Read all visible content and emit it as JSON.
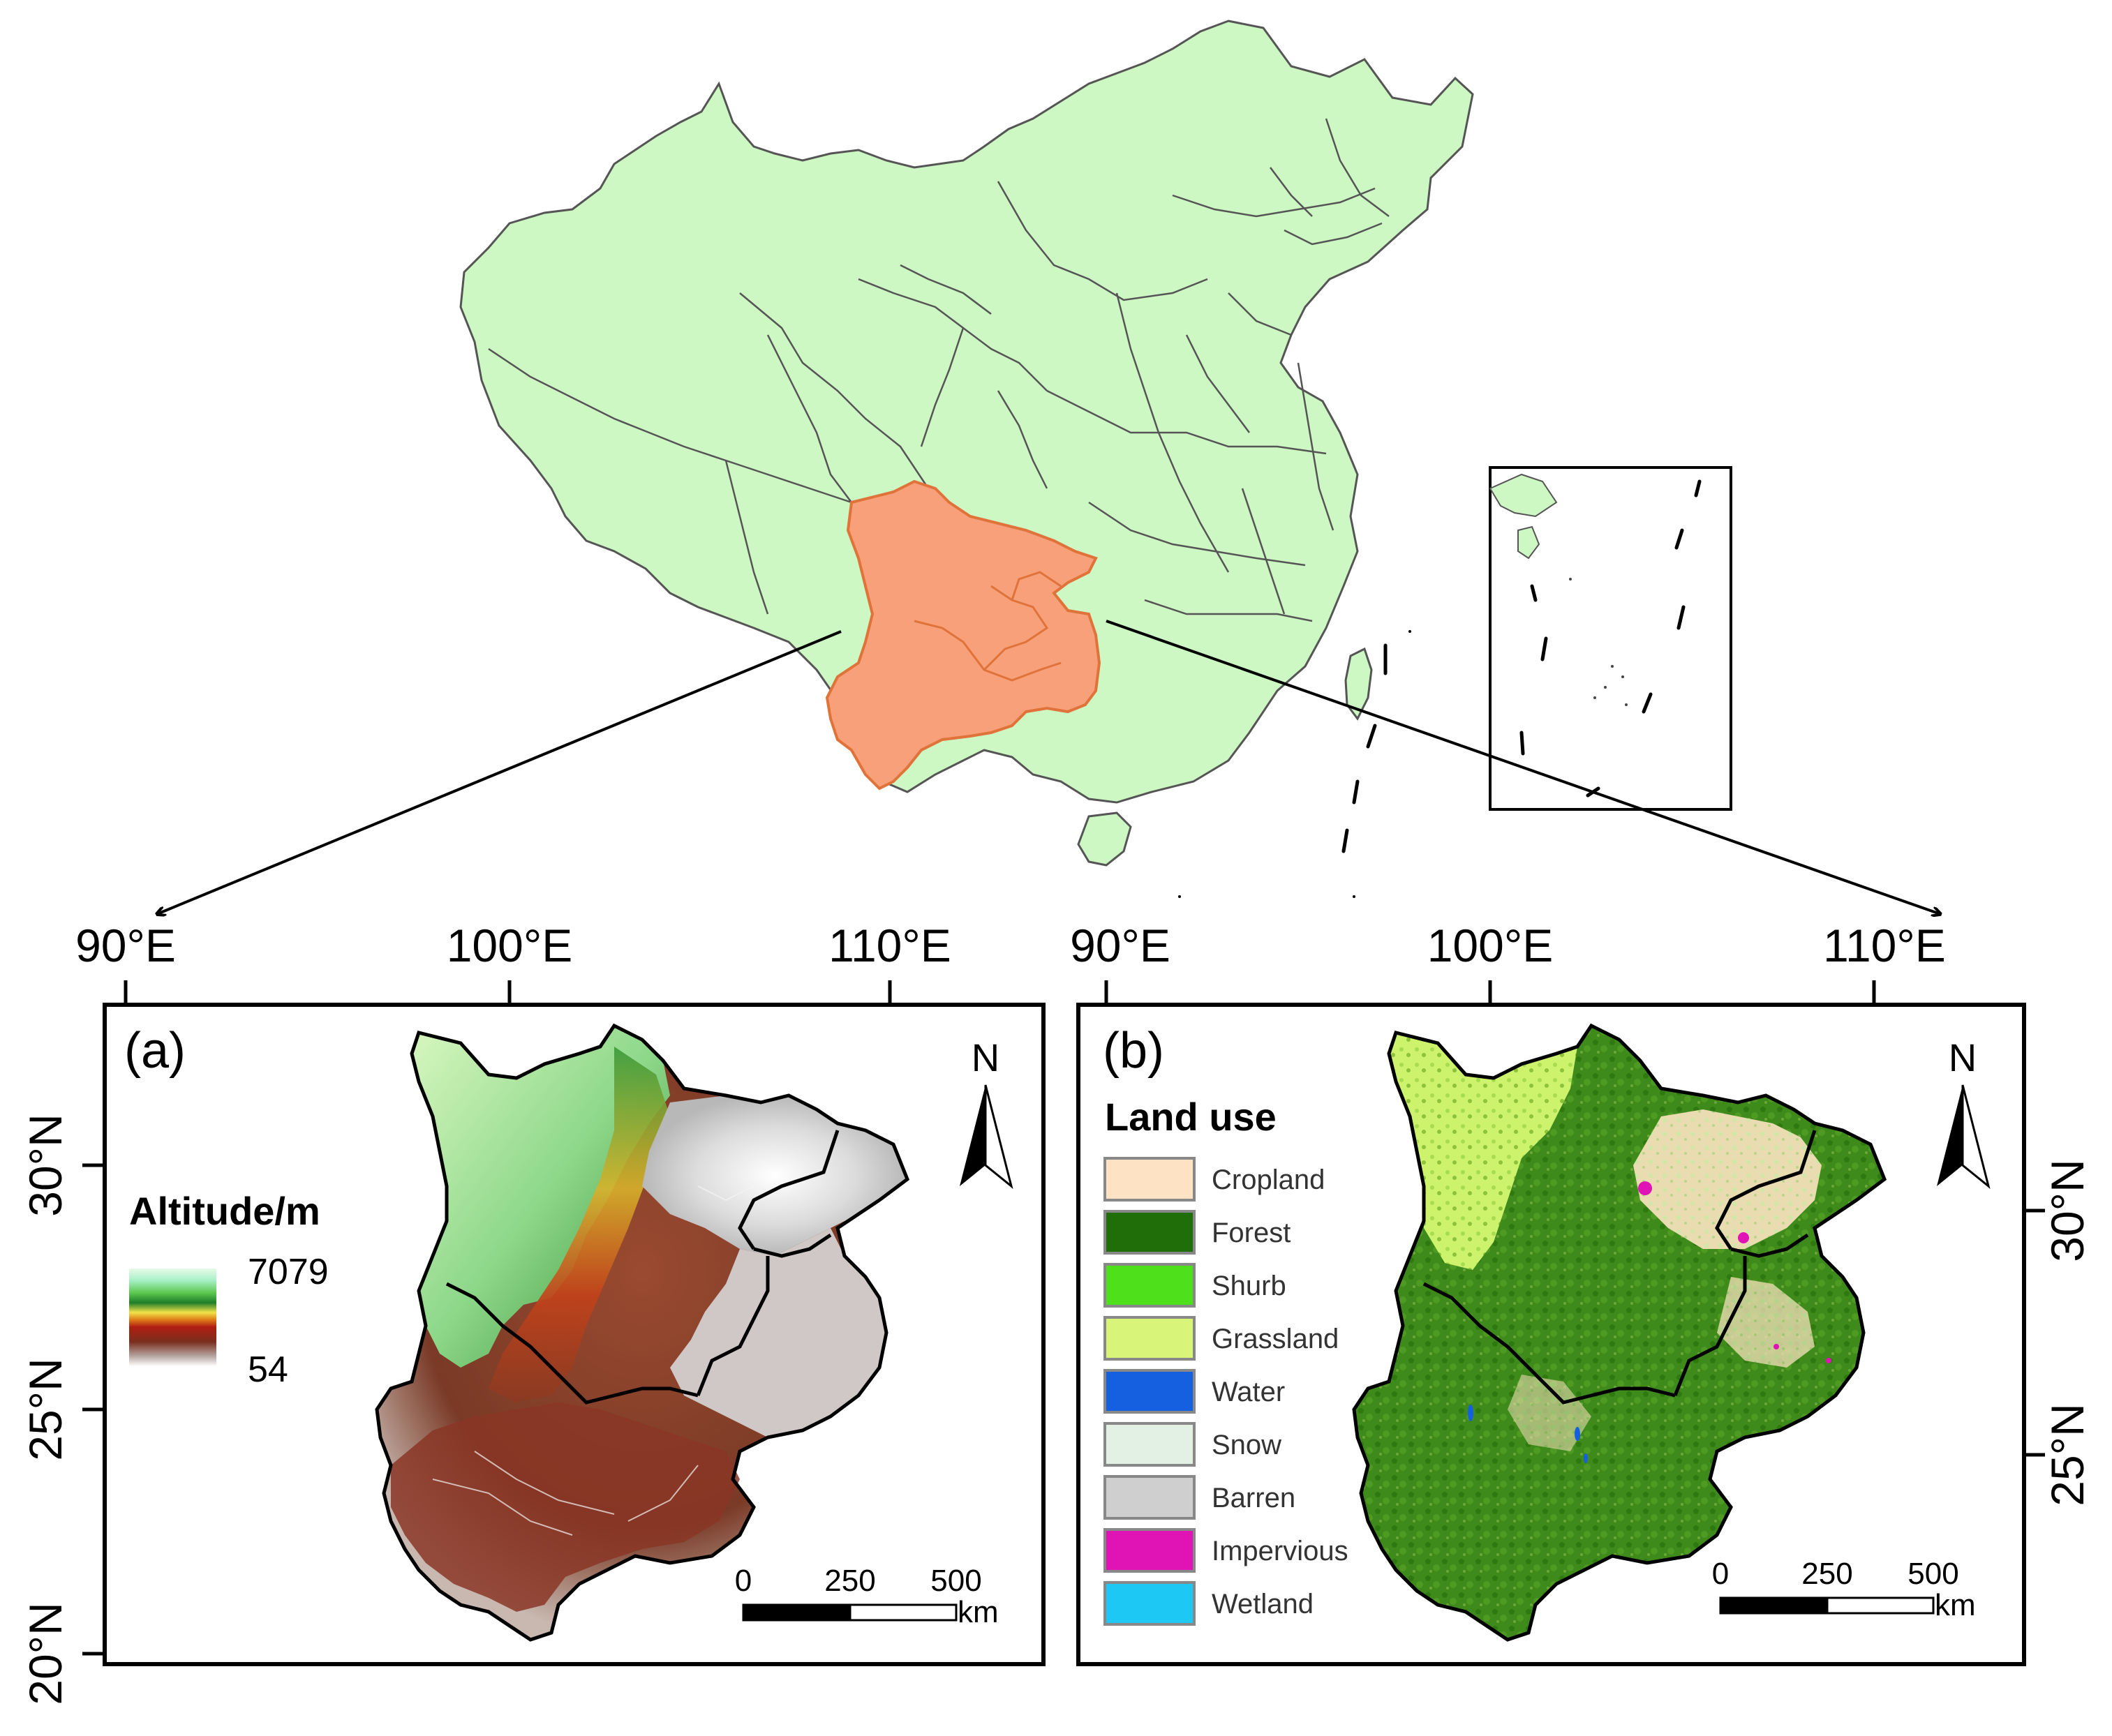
{
  "figure": {
    "overview_map": {
      "highlight_color": "#f7a07a",
      "base_color": "#cdf7c3"
    },
    "panel_a": {
      "label": "(a)",
      "legend_title": "Altitude/m",
      "elevation_max": "7079",
      "elevation_min": "54",
      "north_label": "N",
      "lon_ticks": [
        "90°E",
        "100°E",
        "110°E"
      ],
      "lat_ticks": [
        "30°N",
        "25°N",
        "20°N"
      ],
      "scale": {
        "ticks": [
          "0",
          "250",
          "500"
        ],
        "unit": "km"
      }
    },
    "panel_b": {
      "label": "(b)",
      "legend_title": "Land use",
      "north_label": "N",
      "lon_ticks": [
        "90°E",
        "100°E",
        "110°E"
      ],
      "lat_ticks": [
        "30°N",
        "25°N"
      ],
      "scale": {
        "ticks": [
          "0",
          "250",
          "500"
        ],
        "unit": "km"
      },
      "classes": [
        {
          "name": "Cropland",
          "color": "#fde3c4"
        },
        {
          "name": "Forest",
          "color": "#1f6e0a"
        },
        {
          "name": "Shurb",
          "color": "#4ee01a"
        },
        {
          "name": "Grassland",
          "color": "#d8f57a"
        },
        {
          "name": "Water",
          "color": "#1560e0"
        },
        {
          "name": "Snow",
          "color": "#e2f1e4"
        },
        {
          "name": "Barren",
          "color": "#cfcfcf"
        },
        {
          "name": "Impervious",
          "color": "#e014b4"
        },
        {
          "name": "Wetland",
          "color": "#1ec8f5"
        }
      ]
    }
  }
}
